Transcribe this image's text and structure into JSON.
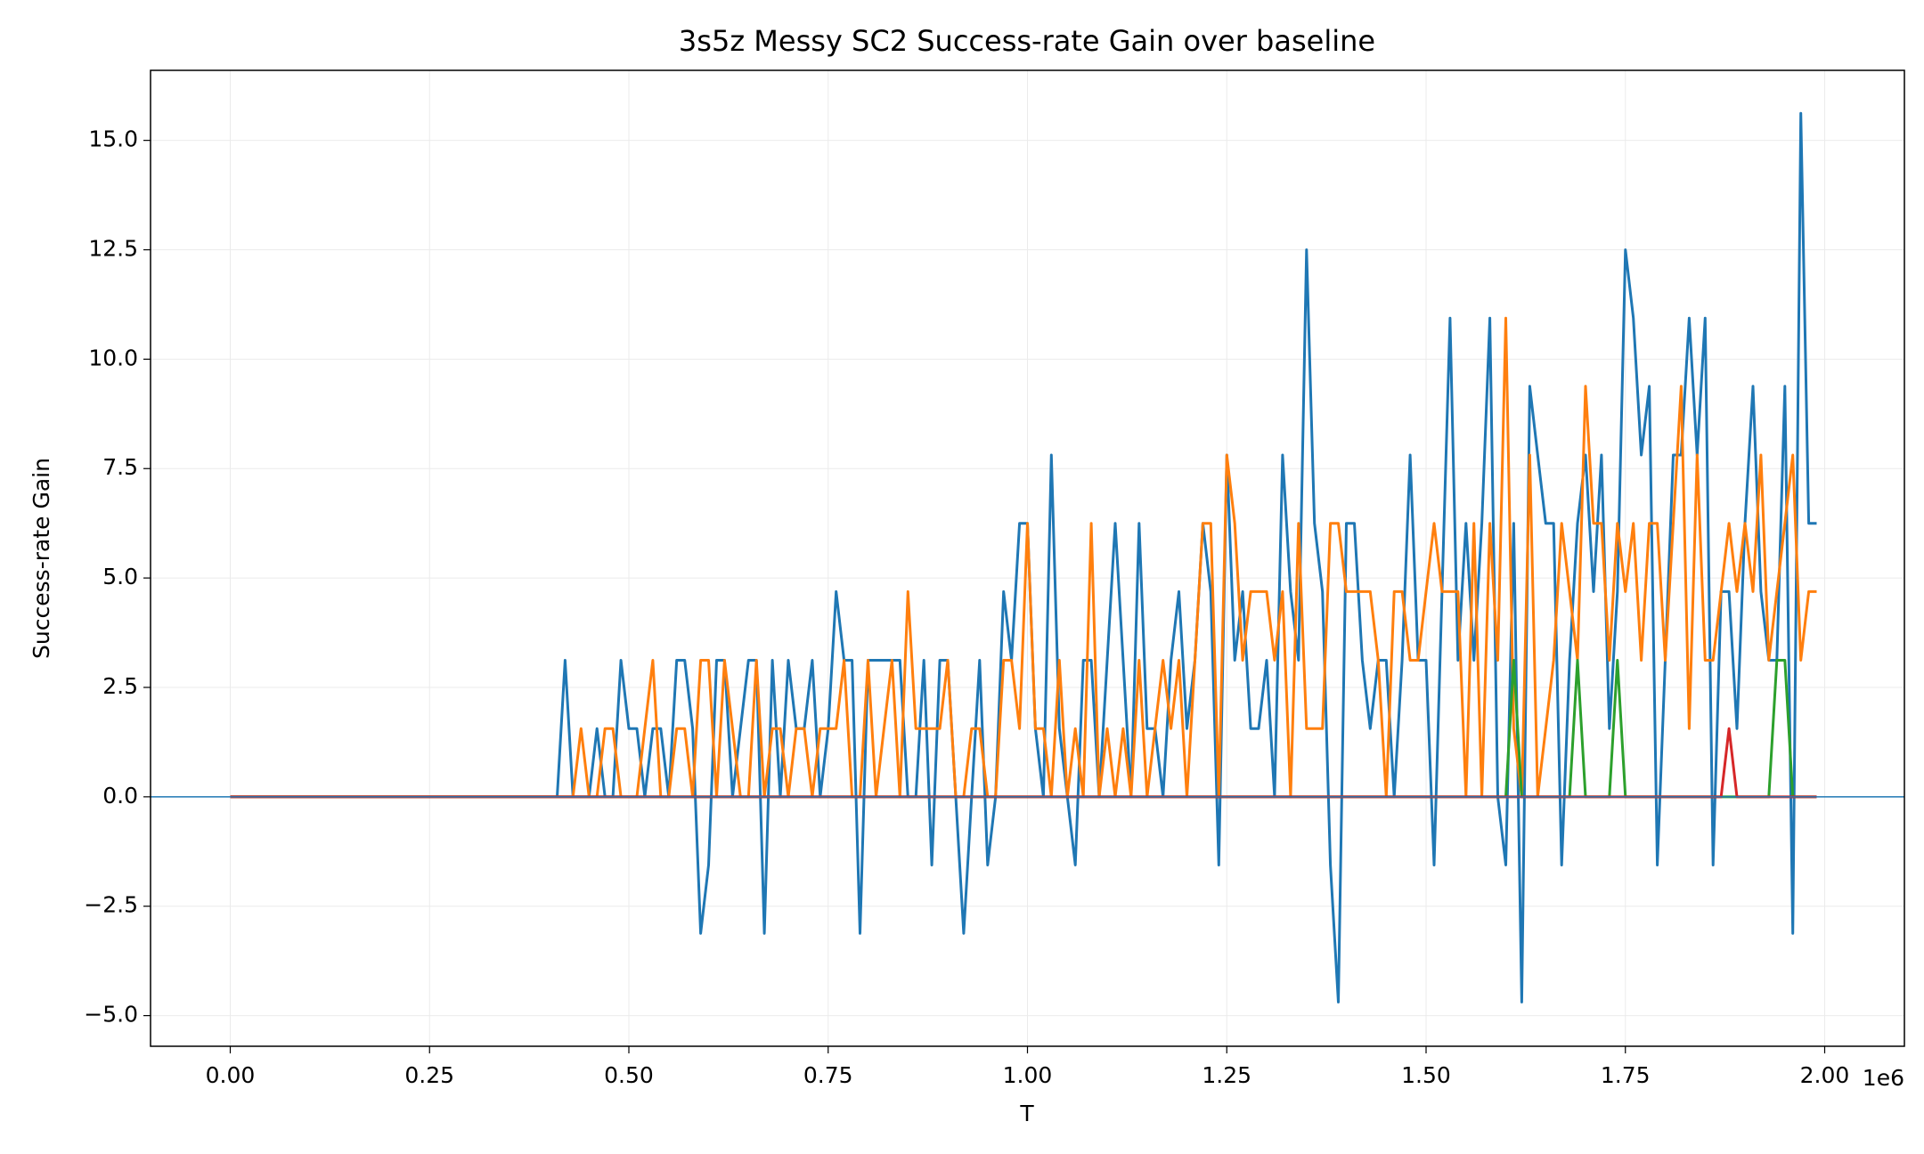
{
  "chart_data": {
    "type": "line",
    "title": "3s5z Messy SC2 Success-rate Gain over baseline",
    "xlabel": "T",
    "ylabel": "Success-rate Gain",
    "x_offset_label": "1e6",
    "x": [
      0,
      10000,
      20000,
      30000,
      40000,
      50000,
      60000,
      70000,
      80000,
      90000,
      100000,
      110000,
      120000,
      130000,
      140000,
      150000,
      160000,
      170000,
      180000,
      190000,
      200000,
      210000,
      220000,
      230000,
      240000,
      250000,
      260000,
      270000,
      280000,
      290000,
      300000,
      310000,
      320000,
      330000,
      340000,
      350000,
      360000,
      370000,
      380000,
      390000,
      400000,
      410000,
      420000,
      430000,
      440000,
      450000,
      460000,
      470000,
      480000,
      490000,
      500000,
      510000,
      520000,
      530000,
      540000,
      550000,
      560000,
      570000,
      580000,
      590000,
      600000,
      610000,
      620000,
      630000,
      640000,
      650000,
      660000,
      670000,
      680000,
      690000,
      700000,
      710000,
      720000,
      730000,
      740000,
      750000,
      760000,
      770000,
      780000,
      790000,
      800000,
      810000,
      820000,
      830000,
      840000,
      850000,
      860000,
      870000,
      880000,
      890000,
      900000,
      910000,
      920000,
      930000,
      940000,
      950000,
      960000,
      970000,
      980000,
      990000,
      1000000,
      1010000,
      1020000,
      1030000,
      1040000,
      1050000,
      1060000,
      1070000,
      1080000,
      1090000,
      1100000,
      1110000,
      1120000,
      1130000,
      1140000,
      1150000,
      1160000,
      1170000,
      1180000,
      1190000,
      1200000,
      1210000,
      1220000,
      1230000,
      1240000,
      1250000,
      1260000,
      1270000,
      1280000,
      1290000,
      1300000,
      1310000,
      1320000,
      1330000,
      1340000,
      1350000,
      1360000,
      1370000,
      1380000,
      1390000,
      1400000,
      1410000,
      1420000,
      1430000,
      1440000,
      1450000,
      1460000,
      1470000,
      1480000,
      1490000,
      1500000,
      1510000,
      1520000,
      1530000,
      1540000,
      1550000,
      1560000,
      1570000,
      1580000,
      1590000,
      1600000,
      1610000,
      1620000,
      1630000,
      1640000,
      1650000,
      1660000,
      1670000,
      1680000,
      1690000,
      1700000,
      1710000,
      1720000,
      1730000,
      1740000,
      1750000,
      1760000,
      1770000,
      1780000,
      1790000,
      1800000,
      1810000,
      1820000,
      1830000,
      1840000,
      1850000,
      1860000,
      1870000,
      1880000,
      1890000,
      1900000,
      1910000,
      1920000,
      1930000,
      1940000,
      1950000,
      1960000,
      1970000,
      1980000,
      1990000
    ],
    "series": [
      {
        "color": "#1f77b4",
        "values": [
          0,
          0,
          0,
          0,
          0,
          0,
          0,
          0,
          0,
          0,
          0,
          0,
          0,
          0,
          0,
          0,
          0,
          0,
          0,
          0,
          0,
          0,
          0,
          0,
          0,
          0,
          0,
          0,
          0,
          0,
          0,
          0,
          0,
          0,
          0,
          0,
          0,
          0,
          0,
          0,
          0,
          0,
          3.12,
          0,
          0,
          0,
          1.56,
          0,
          0,
          3.12,
          1.56,
          1.56,
          0,
          1.56,
          1.56,
          0,
          3.12,
          3.12,
          1.56,
          -3.12,
          -1.56,
          3.12,
          3.12,
          0,
          1.56,
          3.12,
          3.12,
          -3.12,
          3.12,
          0,
          3.12,
          1.56,
          1.56,
          3.12,
          0,
          1.56,
          4.69,
          3.12,
          3.12,
          -3.12,
          3.12,
          3.12,
          3.12,
          3.12,
          3.12,
          0,
          0,
          3.12,
          -1.56,
          3.12,
          3.12,
          0,
          -3.12,
          0,
          3.12,
          -1.56,
          0,
          4.69,
          3.12,
          6.25,
          6.25,
          1.56,
          0,
          7.81,
          1.56,
          0,
          -1.56,
          3.12,
          3.12,
          0,
          3.12,
          6.25,
          3.12,
          0,
          6.25,
          1.56,
          1.56,
          0,
          3.12,
          4.69,
          1.56,
          3.12,
          6.25,
          4.69,
          -1.56,
          7.81,
          3.12,
          4.69,
          1.56,
          1.56,
          3.12,
          0,
          7.81,
          4.69,
          3.12,
          12.5,
          6.25,
          4.69,
          -1.56,
          -4.69,
          6.25,
          6.25,
          3.12,
          1.56,
          3.12,
          3.12,
          0,
          3.12,
          7.81,
          3.12,
          3.12,
          -1.56,
          4.69,
          10.94,
          3.12,
          6.25,
          3.12,
          6.25,
          10.94,
          0,
          -1.56,
          6.25,
          -4.69,
          9.38,
          7.81,
          6.25,
          6.25,
          -1.56,
          3.12,
          6.25,
          7.81,
          4.69,
          7.81,
          1.56,
          4.69,
          12.5,
          10.94,
          7.81,
          9.38,
          -1.56,
          3.12,
          7.81,
          7.81,
          10.94,
          7.81,
          10.94,
          -1.56,
          4.69,
          4.69,
          1.56,
          6.25,
          9.38,
          4.69,
          3.12,
          3.12,
          9.38,
          -3.12,
          15.62,
          6.25,
          6.25
        ]
      },
      {
        "color": "#ff7f0e",
        "values": [
          0,
          0,
          0,
          0,
          0,
          0,
          0,
          0,
          0,
          0,
          0,
          0,
          0,
          0,
          0,
          0,
          0,
          0,
          0,
          0,
          0,
          0,
          0,
          0,
          0,
          0,
          0,
          0,
          0,
          0,
          0,
          0,
          0,
          0,
          0,
          0,
          0,
          0,
          0,
          0,
          0,
          0,
          0,
          0,
          1.56,
          0,
          0,
          1.56,
          1.56,
          0,
          0,
          0,
          1.56,
          3.12,
          0,
          0,
          1.56,
          1.56,
          0,
          3.12,
          3.12,
          0,
          3.12,
          1.56,
          0,
          0,
          3.12,
          0,
          1.56,
          1.56,
          0,
          1.56,
          1.56,
          0,
          1.56,
          1.56,
          1.56,
          3.12,
          0,
          0,
          3.12,
          0,
          1.56,
          3.12,
          0,
          4.69,
          1.56,
          1.56,
          1.56,
          1.56,
          3.12,
          0,
          0,
          1.56,
          1.56,
          0,
          0,
          3.12,
          3.12,
          1.56,
          6.25,
          1.56,
          1.56,
          0,
          3.12,
          0,
          1.56,
          0,
          6.25,
          0,
          1.56,
          0,
          1.56,
          0,
          3.12,
          0,
          1.56,
          3.12,
          1.56,
          3.12,
          0,
          3.12,
          6.25,
          6.25,
          0,
          7.81,
          6.25,
          3.12,
          4.69,
          4.69,
          4.69,
          3.12,
          4.69,
          0,
          6.25,
          1.56,
          1.56,
          1.56,
          6.25,
          6.25,
          4.69,
          4.69,
          4.69,
          4.69,
          3.12,
          0,
          4.69,
          4.69,
          3.12,
          3.12,
          4.69,
          6.25,
          4.69,
          4.69,
          4.69,
          0,
          6.25,
          0,
          6.25,
          3.12,
          10.94,
          1.56,
          0,
          7.81,
          0,
          1.56,
          3.12,
          6.25,
          4.69,
          3.12,
          9.38,
          6.25,
          6.25,
          3.12,
          6.25,
          4.69,
          6.25,
          3.12,
          6.25,
          6.25,
          3.12,
          6.25,
          9.38,
          1.56,
          7.81,
          3.12,
          3.12,
          4.69,
          6.25,
          4.69,
          6.25,
          4.69,
          7.81,
          3.12,
          4.69,
          6.25,
          7.81,
          3.12,
          4.69,
          4.69
        ]
      },
      {
        "color": "#2ca02c",
        "values": [
          0,
          0,
          0,
          0,
          0,
          0,
          0,
          0,
          0,
          0,
          0,
          0,
          0,
          0,
          0,
          0,
          0,
          0,
          0,
          0,
          0,
          0,
          0,
          0,
          0,
          0,
          0,
          0,
          0,
          0,
          0,
          0,
          0,
          0,
          0,
          0,
          0,
          0,
          0,
          0,
          0,
          0,
          0,
          0,
          0,
          0,
          0,
          0,
          0,
          0,
          0,
          0,
          0,
          0,
          0,
          0,
          0,
          0,
          0,
          0,
          0,
          0,
          0,
          0,
          0,
          0,
          0,
          0,
          0,
          0,
          0,
          0,
          0,
          0,
          0,
          0,
          0,
          0,
          0,
          0,
          0,
          0,
          0,
          0,
          0,
          0,
          0,
          0,
          0,
          0,
          0,
          0,
          0,
          0,
          0,
          0,
          0,
          0,
          0,
          0,
          0,
          0,
          0,
          0,
          0,
          0,
          0,
          0,
          0,
          0,
          0,
          0,
          0,
          0,
          0,
          0,
          0,
          0,
          0,
          0,
          0,
          0,
          0,
          0,
          0,
          0,
          0,
          0,
          0,
          0,
          0,
          0,
          0,
          0,
          0,
          0,
          0,
          0,
          0,
          0,
          0,
          0,
          0,
          0,
          0,
          0,
          0,
          0,
          0,
          0,
          0,
          0,
          0,
          0,
          0,
          0,
          0,
          0,
          0,
          0,
          0,
          3.12,
          0,
          0,
          0,
          0,
          0,
          0,
          0,
          3.12,
          0,
          0,
          0,
          0,
          3.12,
          0,
          0,
          0,
          0,
          0,
          0,
          0,
          0,
          0,
          0,
          0,
          0,
          0,
          0,
          0,
          0,
          0,
          0,
          0,
          3.12,
          3.12,
          0,
          0,
          0,
          0
        ]
      },
      {
        "color": "#d62728",
        "values": [
          0,
          0,
          0,
          0,
          0,
          0,
          0,
          0,
          0,
          0,
          0,
          0,
          0,
          0,
          0,
          0,
          0,
          0,
          0,
          0,
          0,
          0,
          0,
          0,
          0,
          0,
          0,
          0,
          0,
          0,
          0,
          0,
          0,
          0,
          0,
          0,
          0,
          0,
          0,
          0,
          0,
          0,
          0,
          0,
          0,
          0,
          0,
          0,
          0,
          0,
          0,
          0,
          0,
          0,
          0,
          0,
          0,
          0,
          0,
          0,
          0,
          0,
          0,
          0,
          0,
          0,
          0,
          0,
          0,
          0,
          0,
          0,
          0,
          0,
          0,
          0,
          0,
          0,
          0,
          0,
          0,
          0,
          0,
          0,
          0,
          0,
          0,
          0,
          0,
          0,
          0,
          0,
          0,
          0,
          0,
          0,
          0,
          0,
          0,
          0,
          0,
          0,
          0,
          0,
          0,
          0,
          0,
          0,
          0,
          0,
          0,
          0,
          0,
          0,
          0,
          0,
          0,
          0,
          0,
          0,
          0,
          0,
          0,
          0,
          0,
          0,
          0,
          0,
          0,
          0,
          0,
          0,
          0,
          0,
          0,
          0,
          0,
          0,
          0,
          0,
          0,
          0,
          0,
          0,
          0,
          0,
          0,
          0,
          0,
          0,
          0,
          0,
          0,
          0,
          0,
          0,
          0,
          0,
          0,
          0,
          0,
          0,
          0,
          0,
          0,
          0,
          0,
          0,
          0,
          0,
          0,
          0,
          0,
          0,
          0,
          0,
          0,
          0,
          0,
          0,
          0,
          0,
          0,
          0,
          0,
          0,
          0,
          0,
          1.56,
          0,
          0,
          0,
          0,
          0,
          0,
          0,
          0,
          0,
          0,
          0
        ]
      }
    ],
    "hline": {
      "value": 0,
      "color": "#1f77b4"
    },
    "xlim": [
      -100000,
      2100000
    ],
    "xticks": [
      {
        "value": 0,
        "label": "0.00"
      },
      {
        "value": 250000,
        "label": "0.25"
      },
      {
        "value": 500000,
        "label": "0.50"
      },
      {
        "value": 750000,
        "label": "0.75"
      },
      {
        "value": 1000000,
        "label": "1.00"
      },
      {
        "value": 1250000,
        "label": "1.25"
      },
      {
        "value": 1500000,
        "label": "1.50"
      },
      {
        "value": 1750000,
        "label": "1.75"
      },
      {
        "value": 2000000,
        "label": "2.00"
      }
    ],
    "ylim": [
      -5.7,
      16.6
    ],
    "yticks": [
      {
        "value": -5,
        "label": "−5.0"
      },
      {
        "value": -2.5,
        "label": "−2.5"
      },
      {
        "value": 0,
        "label": "0.0"
      },
      {
        "value": 2.5,
        "label": "2.5"
      },
      {
        "value": 5,
        "label": "5.0"
      },
      {
        "value": 7.5,
        "label": "7.5"
      },
      {
        "value": 10,
        "label": "10.0"
      },
      {
        "value": 12.5,
        "label": "12.5"
      },
      {
        "value": 15,
        "label": "15.0"
      }
    ],
    "grid": true
  }
}
